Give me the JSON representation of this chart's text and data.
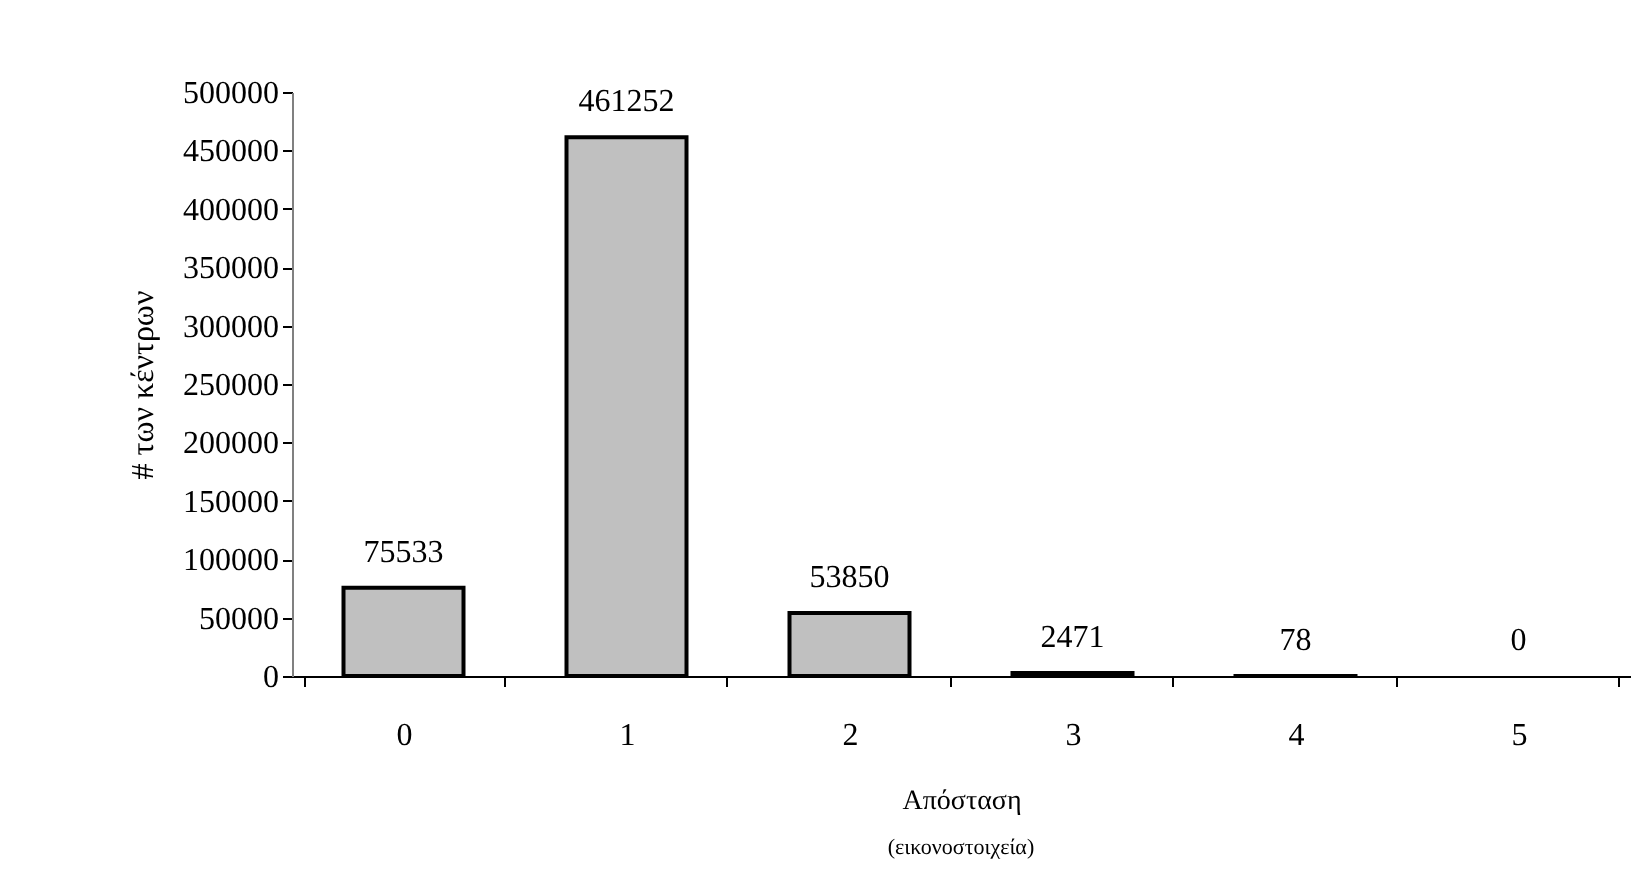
{
  "chart_data": {
    "type": "bar",
    "xlabel": "Απόσταση",
    "ylabel": "# των κέντρων",
    "categories": [
      "0",
      "1",
      "2",
      "3",
      "4",
      "5"
    ],
    "values": [
      75533,
      461252,
      53850,
      2471,
      78,
      0
    ],
    "color": "#c0c0c0",
    "ylim": [
      0,
      500000
    ],
    "yticks": [
      0,
      50000,
      100000,
      150000,
      200000,
      250000,
      300000,
      350000,
      400000,
      450000,
      500000
    ],
    "data_labels": true,
    "grid": false,
    "annotations": [
      "(εικονοστοιχεία)"
    ]
  }
}
